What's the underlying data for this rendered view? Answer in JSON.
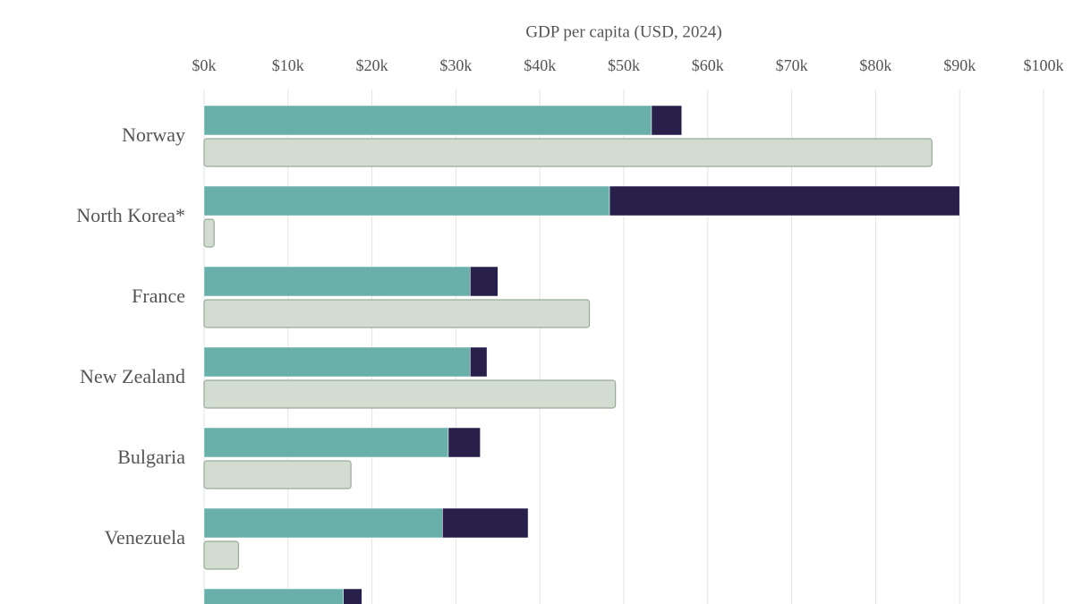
{
  "chart_data": {
    "type": "stacked-hbar-paired",
    "x_axis_label": "GDP per capita (USD, 2024)",
    "categories": [
      "Norway",
      "North Korea*",
      "France",
      "New Zealand",
      "Bulgaria",
      "Venezuela",
      null
    ],
    "stacked_series": [
      {
        "color": "#69b0ab",
        "values": [
          53.3,
          48.3,
          31.7,
          31.7,
          29.1,
          28.4,
          16.6
        ]
      },
      {
        "color": "#281f4b",
        "values": [
          3.6,
          41.7,
          3.3,
          2.0,
          3.8,
          10.2,
          2.2
        ]
      }
    ],
    "paired_series": {
      "color": "#d3dcd0",
      "stroke": "#98ab96",
      "values": [
        86.7,
        1.2,
        45.9,
        49.0,
        17.5,
        4.1,
        null
      ]
    },
    "xlim": [
      0,
      100
    ],
    "xticks": [
      {
        "value": 0,
        "label": "$0k"
      },
      {
        "value": 10,
        "label": "$10k"
      },
      {
        "value": 20,
        "label": "$20k"
      },
      {
        "value": 30,
        "label": "$30k"
      },
      {
        "value": 40,
        "label": "$40k"
      },
      {
        "value": 50,
        "label": "$50k"
      },
      {
        "value": 60,
        "label": "$60k"
      },
      {
        "value": 70,
        "label": "$70k"
      },
      {
        "value": 80,
        "label": "$80k"
      },
      {
        "value": 90,
        "label": "$90k"
      },
      {
        "value": 100,
        "label": "$100k"
      }
    ],
    "grid": true
  }
}
